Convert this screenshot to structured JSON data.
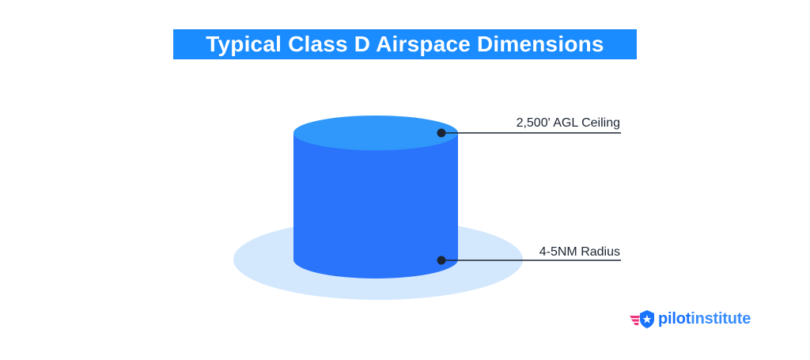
{
  "title": "Typical Class D Airspace Dimensions",
  "callouts": {
    "ceiling": "2,500' AGL Ceiling",
    "radius": "4-5NM Radius"
  },
  "logo": {
    "part1": "pilot",
    "part2": "institute"
  },
  "colors": {
    "title_bg": "#1a8cff",
    "cylinder_body": "#2a74fb",
    "cylinder_top": "#2f98fa",
    "base_disc": "#d3e8fd",
    "callout_line": "#1c2533",
    "logo_wing": "#f0337a",
    "logo_badge": "#1a73ff"
  }
}
